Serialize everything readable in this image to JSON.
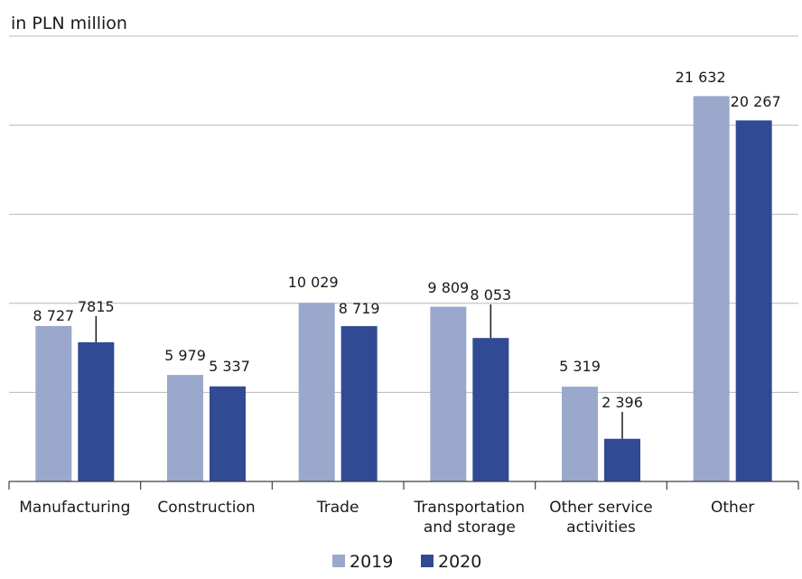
{
  "chart_data": {
    "type": "bar",
    "title": "",
    "unit_label": "in PLN million",
    "xlabel": "",
    "ylabel": "",
    "ylim": [
      0,
      25000
    ],
    "grid": true,
    "legend_position": "bottom-center",
    "categories": [
      [
        "Manufacturing"
      ],
      [
        "Construction"
      ],
      [
        "Trade"
      ],
      [
        "Transportation",
        "and storage"
      ],
      [
        "Other service",
        "activities"
      ],
      [
        "Other"
      ]
    ],
    "series": [
      {
        "name": "2019",
        "color": "#9aa8cc",
        "values": [
          8727,
          5979,
          10029,
          9809,
          5319,
          21632
        ],
        "labels": [
          "8 727",
          "5 979",
          "10 029",
          "9 809",
          "5 319",
          "21 632"
        ]
      },
      {
        "name": "2020",
        "color": "#314a94",
        "values": [
          7815,
          5337,
          8719,
          8053,
          2396,
          20267
        ],
        "labels": [
          "7815",
          "5 337",
          "8 719",
          "8 053",
          "2 396",
          "20 267"
        ]
      }
    ]
  }
}
